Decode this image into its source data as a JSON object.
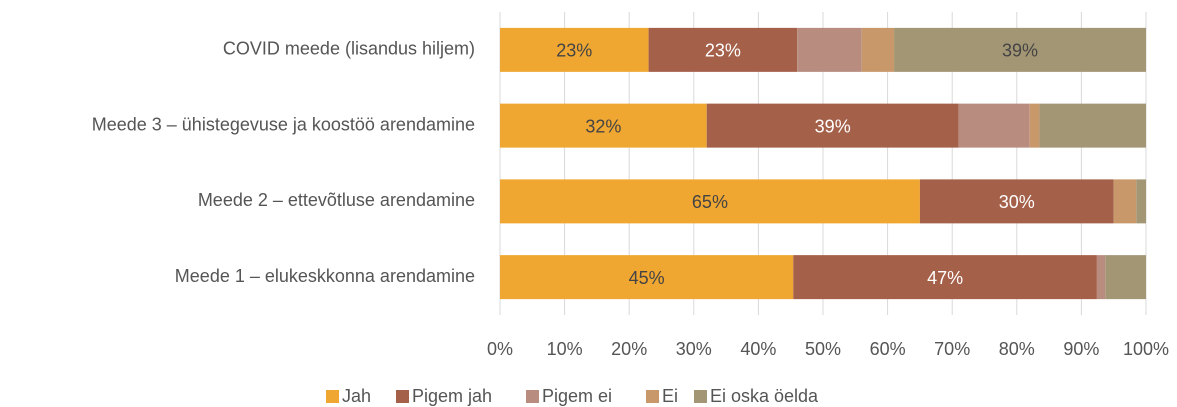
{
  "chart_data": {
    "type": "bar",
    "orientation": "horizontal",
    "stacked": true,
    "categories": [
      "COVID meede (lisandus hiljem)",
      "Meede 3 – ühistegevuse ja koostöö arendamine",
      "Meede 2 – ettevõtluse arendamine",
      "Meede 1 – elukeskkonna arendamine"
    ],
    "series": [
      {
        "name": "Jah",
        "color": "#f0a732",
        "values": [
          23,
          32,
          65,
          45.4
        ],
        "value_labels": [
          "23%",
          "32%",
          "65%",
          "45%"
        ]
      },
      {
        "name": "Pigem jah",
        "color": "#a5604a",
        "values": [
          23,
          39,
          30,
          47
        ],
        "value_labels": [
          "23%",
          "39%",
          "30%",
          "47%"
        ]
      },
      {
        "name": "Pigem ei",
        "color": "#b88d80",
        "values": [
          10,
          11,
          0,
          1.3
        ]
      },
      {
        "name": "Ei",
        "color": "#c9986a",
        "values": [
          5,
          1.5,
          3.5,
          0
        ]
      },
      {
        "name": "Ei oska öelda",
        "color": "#a39675",
        "values": [
          39,
          16.5,
          1.5,
          6.3
        ],
        "value_labels": [
          "39%",
          null,
          null,
          null
        ]
      }
    ],
    "xlim": [
      0,
      100
    ],
    "xticks": [
      {
        "value": 0,
        "label": "0%"
      },
      {
        "value": 10,
        "label": "10%"
      },
      {
        "value": 20,
        "label": "20%"
      },
      {
        "value": 30,
        "label": "30%"
      },
      {
        "value": 40,
        "label": "40%"
      },
      {
        "value": 50,
        "label": "50%"
      },
      {
        "value": 60,
        "label": "60%"
      },
      {
        "value": 70,
        "label": "70%"
      },
      {
        "value": 80,
        "label": "80%"
      },
      {
        "value": 90,
        "label": "90%"
      },
      {
        "value": 100,
        "label": "100%"
      }
    ],
    "grid": true,
    "legend": "bottom"
  }
}
